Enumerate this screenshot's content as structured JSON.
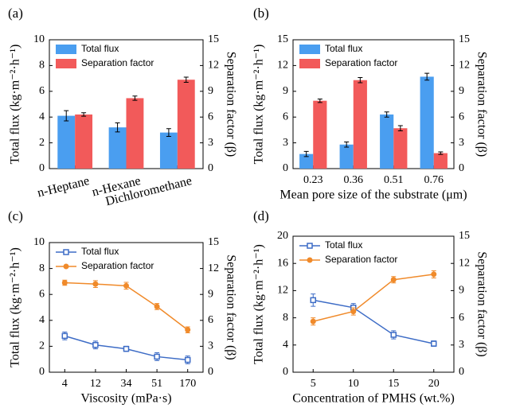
{
  "chart_data": [
    {
      "type": "bar",
      "panel_label": "(a)",
      "ylabel": "Total flux (kg·m⁻²·h⁻¹)",
      "y2label": "Separation factor (β)",
      "categories": [
        "n-Heptane",
        "n-Hexane",
        "Dichloromethane"
      ],
      "series": [
        {
          "name": "Total flux",
          "color": "#4a9ef0",
          "values": [
            4.1,
            3.2,
            2.8
          ],
          "errors": [
            0.4,
            0.35,
            0.3
          ]
        },
        {
          "name": "Separation factor",
          "color": "#f25a5a",
          "axis": "y2",
          "values": [
            6.3,
            8.2,
            10.35
          ],
          "errors": [
            0.2,
            0.25,
            0.3
          ]
        }
      ],
      "ylim": [
        0,
        10
      ],
      "yticks": [
        0,
        2,
        4,
        6,
        8,
        10
      ],
      "y2lim": [
        0,
        15
      ],
      "y2ticks": [
        0,
        3,
        6,
        9,
        12,
        15
      ]
    },
    {
      "type": "bar",
      "panel_label": "(b)",
      "xlabel": "Mean pore size of the substrate (μm)",
      "ylabel": "Total flux (kg·m⁻²·h⁻¹)",
      "y2label": "Separation factor (β)",
      "categories": [
        "0.23",
        "0.36",
        "0.51",
        "0.76"
      ],
      "series": [
        {
          "name": "Total flux",
          "color": "#4a9ef0",
          "values": [
            1.7,
            2.8,
            6.3,
            10.7
          ],
          "errors": [
            0.3,
            0.3,
            0.3,
            0.4
          ]
        },
        {
          "name": "Separation factor",
          "color": "#f25a5a",
          "axis": "y2",
          "values": [
            7.9,
            10.3,
            4.7,
            1.8
          ],
          "errors": [
            0.2,
            0.3,
            0.3,
            0.15
          ]
        }
      ],
      "ylim": [
        0,
        15
      ],
      "yticks": [
        0,
        3,
        6,
        9,
        12,
        15
      ],
      "y2lim": [
        0,
        15
      ],
      "y2ticks": [
        0,
        3,
        6,
        9,
        12,
        15
      ]
    },
    {
      "type": "line",
      "panel_label": "(c)",
      "xlabel": "Viscosity (mPa·s)",
      "ylabel": "Total flux (kg·m⁻²·h⁻¹)",
      "y2label": "Separation factor (β)",
      "categories": [
        "4",
        "12",
        "34",
        "51",
        "170"
      ],
      "series": [
        {
          "name": "Total flux",
          "color": "#3d6cc6",
          "marker": "square",
          "values": [
            2.8,
            2.1,
            1.8,
            1.2,
            0.95
          ],
          "errors": [
            0.3,
            0.3,
            0.2,
            0.3,
            0.3
          ]
        },
        {
          "name": "Separation factor",
          "color": "#f08a2a",
          "marker": "circle",
          "axis": "y2",
          "values": [
            10.35,
            10.2,
            10.0,
            7.6,
            4.9
          ],
          "errors": [
            0.3,
            0.4,
            0.4,
            0.35,
            0.35
          ]
        }
      ],
      "ylim": [
        0,
        10
      ],
      "yticks": [
        0,
        2,
        4,
        6,
        8,
        10
      ],
      "y2lim": [
        0,
        15
      ],
      "y2ticks": [
        0,
        3,
        6,
        9,
        12,
        15
      ]
    },
    {
      "type": "line",
      "panel_label": "(d)",
      "xlabel": "Concentration of PMHS (wt.%)",
      "ylabel": "Total flux (kg·m⁻²·h⁻¹)",
      "y2label": "Separation factor (β)",
      "categories": [
        "5",
        "10",
        "15",
        "20"
      ],
      "series": [
        {
          "name": "Total flux",
          "color": "#3d6cc6",
          "marker": "square",
          "values": [
            10.6,
            9.5,
            5.5,
            4.2
          ],
          "errors": [
            0.9,
            0.6,
            0.6,
            0.4
          ]
        },
        {
          "name": "Separation factor",
          "color": "#f08a2a",
          "marker": "circle",
          "axis": "y2",
          "values": [
            5.6,
            6.7,
            10.2,
            10.8
          ],
          "errors": [
            0.4,
            0.4,
            0.35,
            0.4
          ]
        }
      ],
      "ylim": [
        0,
        20
      ],
      "yticks": [
        0,
        4,
        8,
        12,
        16,
        20
      ],
      "y2lim": [
        0,
        15
      ],
      "y2ticks": [
        0,
        3,
        6,
        9,
        12,
        15
      ]
    }
  ]
}
